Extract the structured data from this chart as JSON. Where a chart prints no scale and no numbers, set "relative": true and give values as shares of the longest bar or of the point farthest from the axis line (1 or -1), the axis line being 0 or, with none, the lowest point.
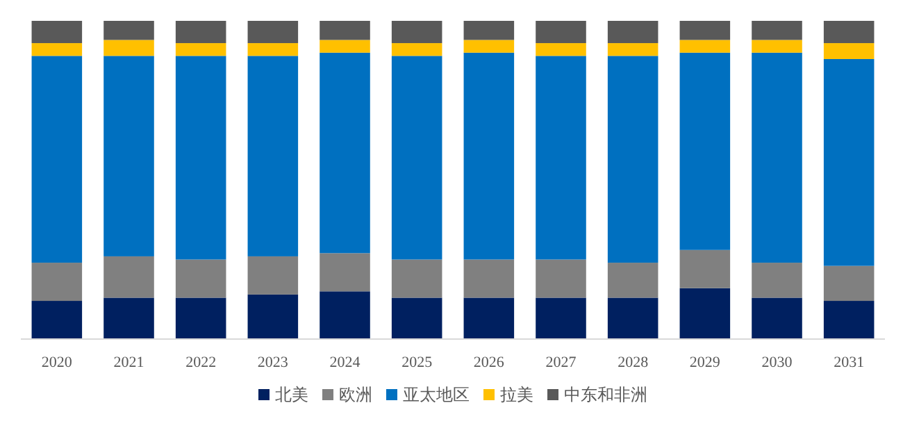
{
  "chart_data": {
    "type": "bar",
    "stacked": true,
    "relative": true,
    "legend": "bottom",
    "categories": [
      "2020",
      "2021",
      "2022",
      "2023",
      "2024",
      "2025",
      "2026",
      "2027",
      "2028",
      "2029",
      "2030",
      "2031"
    ],
    "series": [
      {
        "name": "北美",
        "color": "#002060",
        "values": [
          0.12,
          0.13,
          0.13,
          0.14,
          0.15,
          0.13,
          0.13,
          0.13,
          0.13,
          0.16,
          0.13,
          0.12
        ]
      },
      {
        "name": "欧洲",
        "color": "#808080",
        "values": [
          0.12,
          0.13,
          0.12,
          0.12,
          0.12,
          0.12,
          0.12,
          0.12,
          0.11,
          0.12,
          0.11,
          0.11
        ]
      },
      {
        "name": "亚太地区",
        "color": "#0070c0",
        "values": [
          0.65,
          0.63,
          0.64,
          0.63,
          0.63,
          0.64,
          0.65,
          0.64,
          0.65,
          0.62,
          0.66,
          0.65
        ]
      },
      {
        "name": "拉美",
        "color": "#ffc000",
        "values": [
          0.04,
          0.05,
          0.04,
          0.04,
          0.04,
          0.04,
          0.04,
          0.04,
          0.04,
          0.04,
          0.04,
          0.05
        ]
      },
      {
        "name": "中东和非洲",
        "color": "#595959",
        "values": [
          0.07,
          0.06,
          0.07,
          0.07,
          0.06,
          0.07,
          0.06,
          0.07,
          0.07,
          0.06,
          0.06,
          0.07
        ]
      }
    ]
  }
}
